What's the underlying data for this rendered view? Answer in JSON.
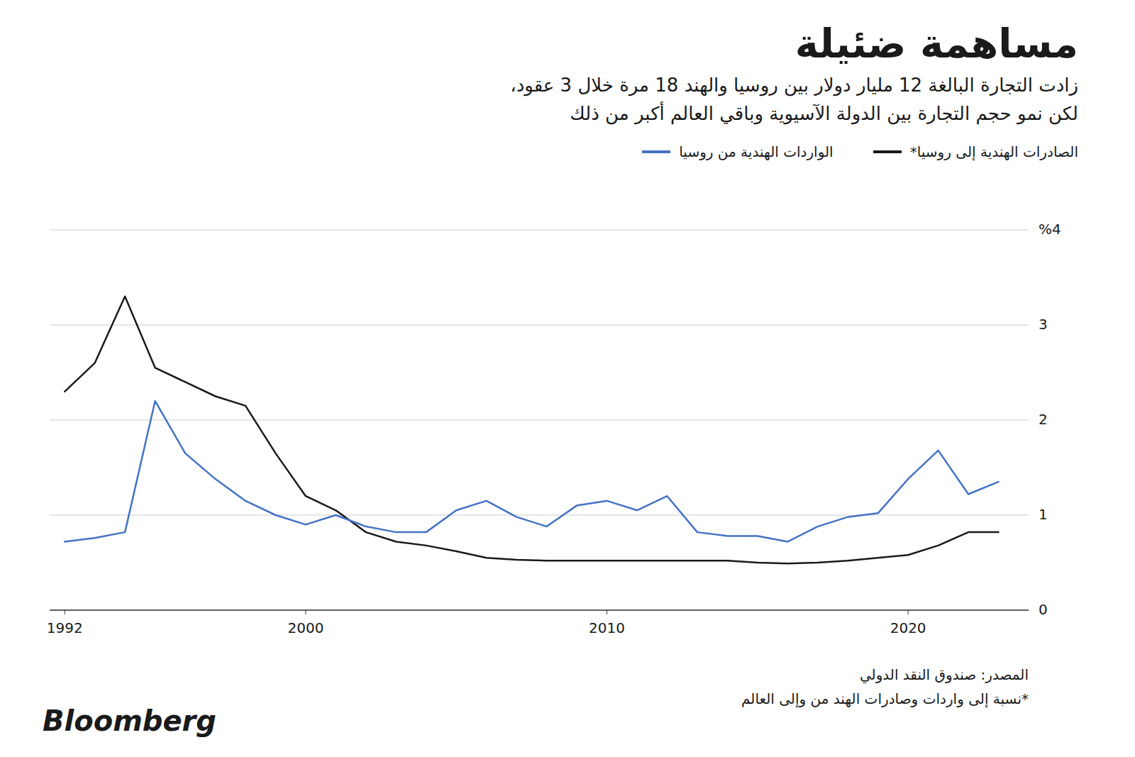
{
  "chart_data": {
    "type": "line",
    "title": "مساهمة ضئيلة",
    "subtitle": [
      "زادت التجارة البالغة 12 مليار دولار بين روسيا والهند 18 مرة خلال 3 عقود،",
      "لكن نمو حجم التجارة بين الدولة الآسيوية وباقي العالم أكبر من ذلك"
    ],
    "annotations": [
      "المصدر: صندوق النقد الدولي",
      "*نسبة إلى واردات وصادرات الهند من وإلى العالم",
      "Bloomberg"
    ],
    "x": [
      1992,
      1993,
      1994,
      1995,
      1996,
      1997,
      1998,
      1999,
      2000,
      2001,
      2002,
      2003,
      2004,
      2005,
      2006,
      2007,
      2008,
      2009,
      2010,
      2011,
      2012,
      2013,
      2014,
      2015,
      2016,
      2017,
      2018,
      2019,
      2020,
      2021,
      2022,
      2023
    ],
    "series": [
      {
        "name": "الصادرات الهندية إلى روسيا*",
        "color": "#1a1a1a",
        "values": [
          2.3,
          2.6,
          3.3,
          2.55,
          2.4,
          2.25,
          2.15,
          1.65,
          1.2,
          1.05,
          0.82,
          0.72,
          0.68,
          0.62,
          0.55,
          0.53,
          0.52,
          0.52,
          0.52,
          0.52,
          0.52,
          0.52,
          0.52,
          0.5,
          0.49,
          0.5,
          0.52,
          0.55,
          0.58,
          0.68,
          0.82,
          0.82
        ]
      },
      {
        "name": "الواردات الهندية من روسيا",
        "color": "#4472C4",
        "values": [
          0.72,
          0.76,
          0.82,
          2.2,
          1.65,
          1.38,
          1.15,
          1.0,
          0.9,
          1.0,
          0.88,
          0.82,
          0.82,
          1.05,
          1.15,
          0.98,
          0.88,
          1.1,
          1.15,
          1.05,
          1.2,
          0.82,
          0.78,
          0.78,
          0.72,
          0.88,
          0.98,
          1.02,
          1.38,
          1.68,
          1.22,
          1.35
        ]
      }
    ],
    "xlim": [
      1991.5,
      2024.0
    ],
    "xticks": [
      1992,
      2000,
      2010,
      2020
    ],
    "ylim": [
      0,
      4
    ],
    "yticks": [
      0,
      1,
      2,
      3,
      {
        "value": 4,
        "label": "%4"
      }
    ],
    "grid": true,
    "legend": "top-right"
  }
}
